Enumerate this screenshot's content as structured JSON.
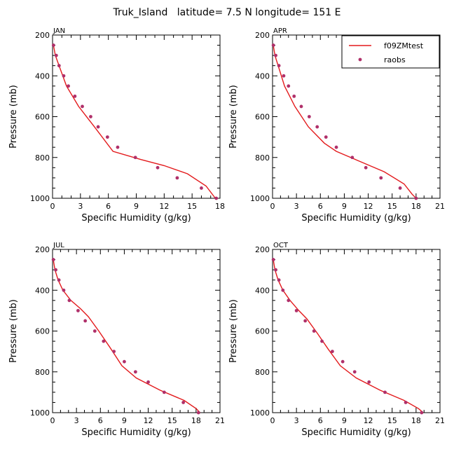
{
  "title": "Truk_Island   latitude= 7.5 N longitude= 151 E",
  "colors": {
    "model_line": "#e31a1c",
    "obs_marker": "#b0306a"
  },
  "legend": {
    "entries": [
      "f09ZMtest",
      "raobs"
    ]
  },
  "chart_data": [
    {
      "type": "line",
      "panel_label": "JAN",
      "xlabel": "Specific Humidity (g/kg)",
      "ylabel": "Pressure (mb)",
      "xlim": [
        0,
        18
      ],
      "xticks": [
        0,
        3,
        6,
        9,
        12,
        15,
        18
      ],
      "ylim": [
        1000,
        200
      ],
      "yticks": [
        200,
        400,
        600,
        800,
        1000
      ],
      "series": [
        {
          "name": "f09ZMtest",
          "kind": "line",
          "x": [
            0.1,
            0.3,
            0.7,
            1.5,
            2.8,
            4.5,
            6.5,
            9.5,
            12.0,
            14.5,
            16.5,
            17.5
          ],
          "y": [
            250,
            300,
            350,
            450,
            550,
            650,
            770,
            810,
            840,
            880,
            940,
            1000
          ]
        },
        {
          "name": "raobs",
          "kind": "scatter",
          "x": [
            0.1,
            0.4,
            0.7,
            1.2,
            1.7,
            2.4,
            3.2,
            4.1,
            4.9,
            5.9,
            7.0,
            8.9,
            11.3,
            13.4,
            16.0,
            17.6
          ],
          "y": [
            250,
            300,
            350,
            400,
            450,
            500,
            550,
            600,
            650,
            700,
            750,
            800,
            850,
            900,
            950,
            1000
          ]
        }
      ]
    },
    {
      "type": "line",
      "panel_label": "APR",
      "xlabel": "Specific Humidity (g/kg)",
      "ylabel": "Pressure (mb)",
      "xlim": [
        0,
        21
      ],
      "xticks": [
        0,
        3,
        6,
        9,
        12,
        15,
        18,
        21
      ],
      "ylim": [
        1000,
        200
      ],
      "yticks": [
        200,
        400,
        600,
        800,
        1000
      ],
      "show_legend": true,
      "series": [
        {
          "name": "f09ZMtest",
          "kind": "line",
          "x": [
            0.1,
            0.3,
            0.7,
            1.5,
            2.8,
            4.5,
            6.5,
            8.0,
            11.0,
            14.0,
            16.5,
            17.5,
            18.0
          ],
          "y": [
            250,
            300,
            350,
            450,
            550,
            650,
            730,
            770,
            820,
            870,
            930,
            980,
            1000
          ]
        },
        {
          "name": "raobs",
          "kind": "scatter",
          "x": [
            0.1,
            0.4,
            0.8,
            1.4,
            2.0,
            2.7,
            3.6,
            4.6,
            5.6,
            6.7,
            8.0,
            10.0,
            11.7,
            13.6,
            16.0,
            18.0
          ],
          "y": [
            250,
            300,
            350,
            400,
            450,
            500,
            550,
            600,
            650,
            700,
            750,
            800,
            850,
            900,
            950,
            1000
          ]
        }
      ]
    },
    {
      "type": "line",
      "panel_label": "JUL",
      "xlabel": "Specific Humidity (g/kg)",
      "ylabel": "Pressure (mb)",
      "xlim": [
        0,
        21
      ],
      "xticks": [
        0,
        3,
        6,
        9,
        12,
        15,
        18,
        21
      ],
      "ylim": [
        1000,
        200
      ],
      "yticks": [
        200,
        400,
        600,
        800,
        1000
      ],
      "series": [
        {
          "name": "f09ZMtest",
          "kind": "line",
          "x": [
            0.1,
            0.3,
            0.7,
            1.3,
            2.3,
            3.5,
            4.5,
            5.8,
            7.2,
            8.7,
            10.5,
            13.5,
            16.5,
            18.0,
            18.5
          ],
          "y": [
            250,
            300,
            350,
            400,
            450,
            490,
            530,
            600,
            680,
            770,
            830,
            890,
            940,
            980,
            1000
          ]
        },
        {
          "name": "raobs",
          "kind": "scatter",
          "x": [
            0.1,
            0.4,
            0.8,
            1.4,
            2.1,
            3.2,
            4.1,
            5.3,
            6.4,
            7.7,
            9.0,
            10.4,
            12.0,
            14.0,
            16.4,
            18.3
          ],
          "y": [
            250,
            300,
            350,
            400,
            450,
            500,
            550,
            600,
            650,
            700,
            750,
            800,
            850,
            900,
            950,
            1000
          ]
        }
      ]
    },
    {
      "type": "line",
      "panel_label": "OCT",
      "xlabel": "Specific Humidity (g/kg)",
      "ylabel": "Pressure (mb)",
      "xlim": [
        0,
        21
      ],
      "xticks": [
        0,
        3,
        6,
        9,
        12,
        15,
        18,
        21
      ],
      "ylim": [
        1000,
        200
      ],
      "yticks": [
        200,
        400,
        600,
        800,
        1000
      ],
      "series": [
        {
          "name": "f09ZMtest",
          "kind": "line",
          "x": [
            0.1,
            0.3,
            0.7,
            1.3,
            2.2,
            3.3,
            4.3,
            5.6,
            7.0,
            8.5,
            10.5,
            13.5,
            16.5,
            18.3,
            18.9
          ],
          "y": [
            250,
            300,
            350,
            400,
            450,
            500,
            540,
            610,
            690,
            770,
            830,
            890,
            940,
            980,
            1000
          ]
        },
        {
          "name": "raobs",
          "kind": "scatter",
          "x": [
            0.1,
            0.4,
            0.8,
            1.3,
            2.0,
            3.0,
            4.1,
            5.2,
            6.2,
            7.5,
            8.8,
            10.3,
            12.1,
            14.1,
            16.7,
            18.7
          ],
          "y": [
            250,
            300,
            350,
            400,
            450,
            500,
            550,
            600,
            650,
            700,
            750,
            800,
            850,
            900,
            950,
            1000
          ]
        }
      ]
    }
  ]
}
